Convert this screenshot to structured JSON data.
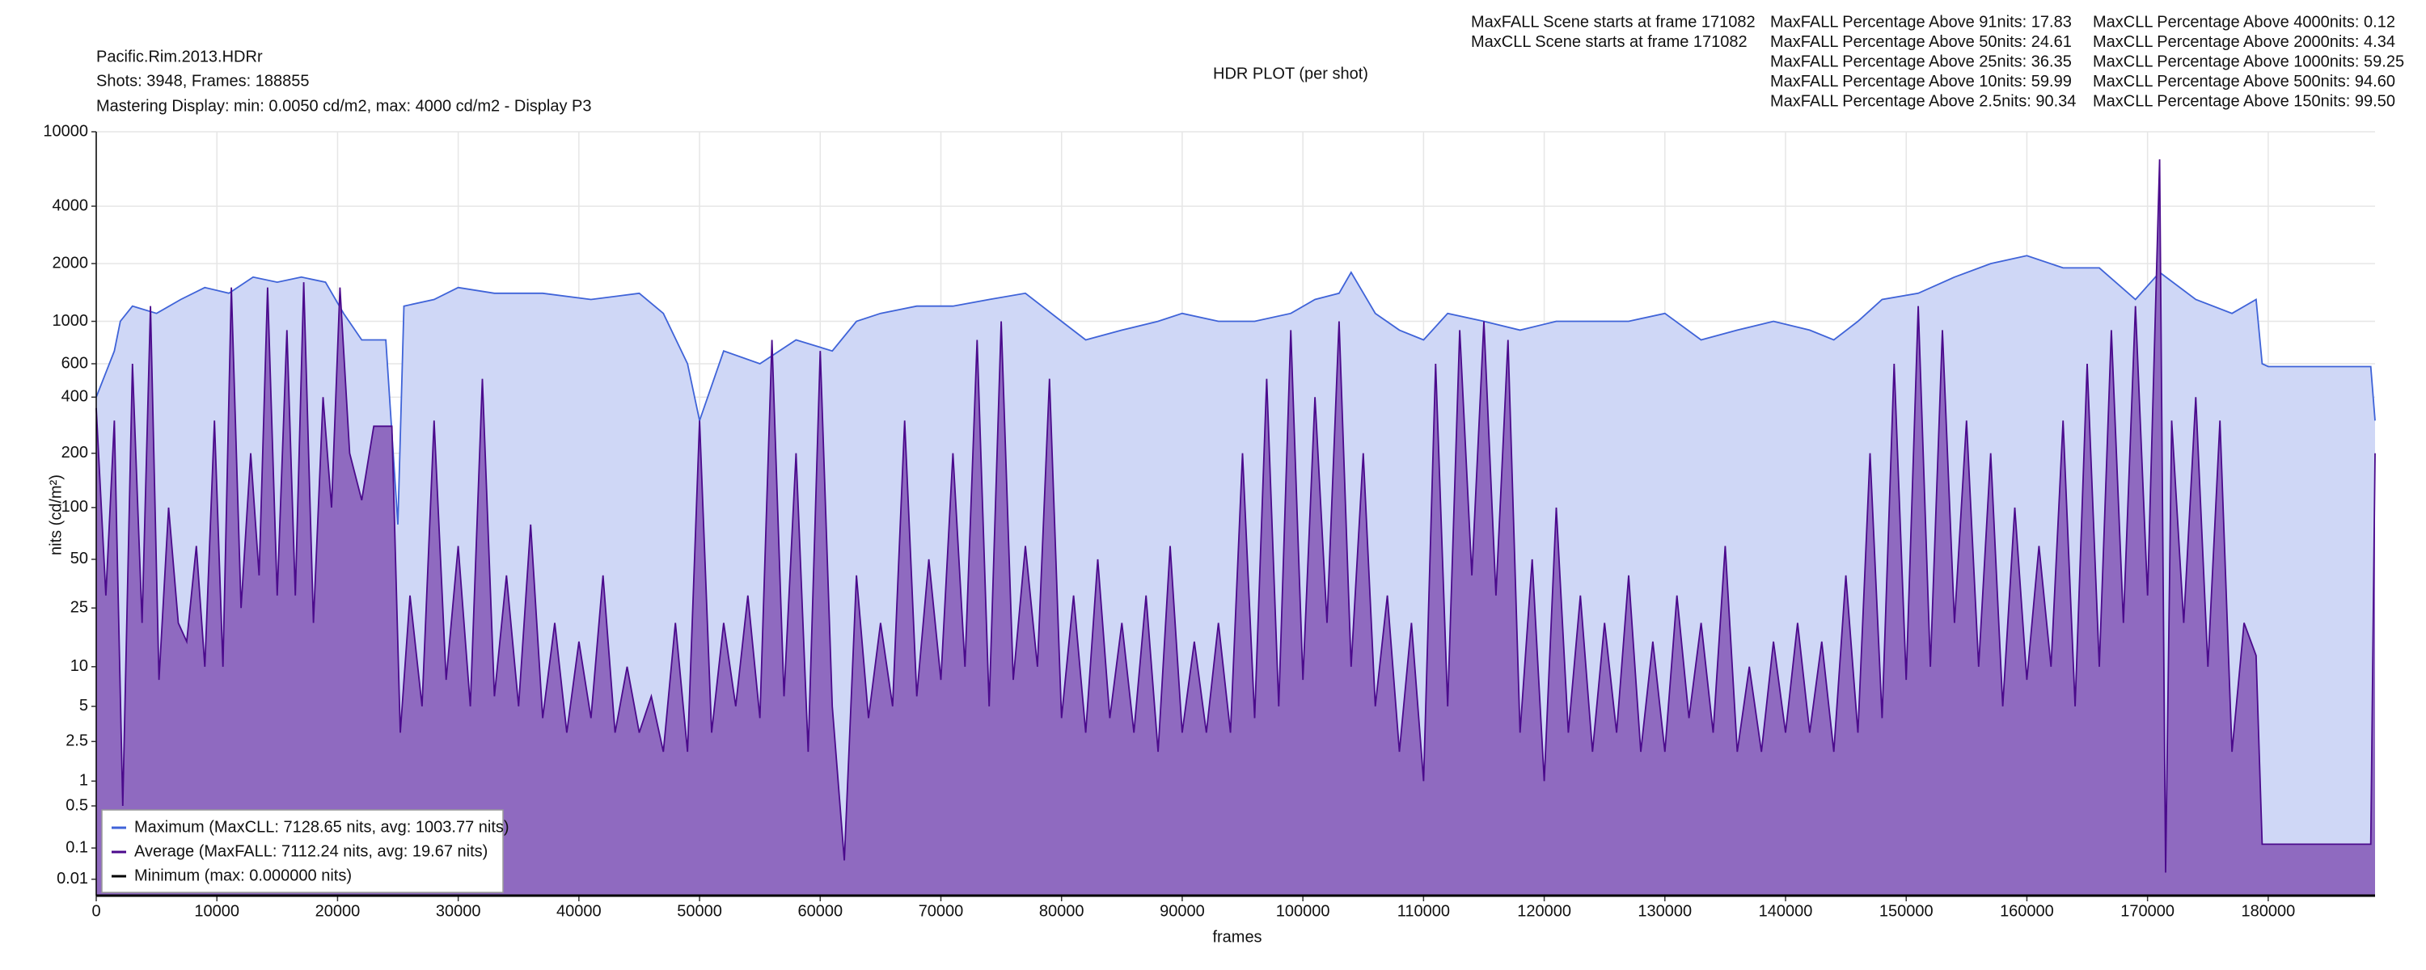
{
  "chart_data": {
    "type": "line",
    "title": "HDR PLOT (per shot)",
    "info": [
      "Pacific.Rim.2013.HDRr",
      "Shots:  3948, Frames: 188855",
      "Mastering Display: min: 0.0050 cd/m2, max: 4000 cd/m2 - Display P3"
    ],
    "stats": [
      [
        "MaxFALL Scene starts at frame 171082",
        "MaxCLL Scene starts at frame 171082"
      ],
      [
        "MaxFALL Percentage Above  91nits: 17.83",
        "MaxFALL Percentage Above  50nits: 24.61",
        "MaxFALL Percentage Above  25nits: 36.35",
        "MaxFALL Percentage Above  10nits: 59.99",
        "MaxFALL Percentage Above 2.5nits: 90.34"
      ],
      [
        "MaxCLL Percentage Above 4000nits: 0.12",
        "MaxCLL Percentage Above 2000nits: 4.34",
        "MaxCLL Percentage Above 1000nits: 59.25",
        "MaxCLL Percentage Above   500nits: 94.60",
        "MaxCLL Percentage Above   150nits: 99.50"
      ]
    ],
    "x_label": "frames",
    "y_label": "nits (cd/m²)",
    "y_scale": "pq",
    "grid": true,
    "legend": "lower left",
    "xlim": [
      0,
      188855
    ],
    "xticks": [
      0,
      10000,
      20000,
      30000,
      40000,
      50000,
      60000,
      70000,
      80000,
      90000,
      100000,
      110000,
      120000,
      130000,
      140000,
      150000,
      160000,
      170000,
      180000
    ],
    "ylim": [
      0,
      10000
    ],
    "yticks": [
      0.01,
      0.1,
      0.5,
      1,
      2.5,
      5,
      10,
      25,
      50,
      100,
      200,
      400,
      600,
      1000,
      2000,
      4000,
      10000
    ],
    "series": [
      {
        "name": "Maximum (MaxCLL: 7128.65 nits, avg: 1003.77 nits)",
        "color": "#3f63d8",
        "fill": "#cfd7f6",
        "x": [
          0,
          1500,
          2000,
          3000,
          5000,
          7000,
          9000,
          11000,
          13000,
          15000,
          17000,
          19000,
          20500,
          22000,
          24000,
          25000,
          25500,
          28000,
          30000,
          33000,
          37000,
          41000,
          45000,
          47000,
          49000,
          50000,
          52000,
          55000,
          58000,
          61000,
          63000,
          65000,
          68000,
          71000,
          74000,
          77000,
          80000,
          82000,
          85000,
          88000,
          90000,
          93000,
          96000,
          99000,
          101000,
          103000,
          104000,
          106000,
          108000,
          110000,
          112000,
          115000,
          118000,
          121000,
          124000,
          127000,
          130000,
          133000,
          136000,
          139000,
          142000,
          144000,
          146000,
          148000,
          151000,
          154000,
          157000,
          160000,
          163000,
          166000,
          169000,
          171000,
          174000,
          177000,
          179000,
          179500,
          180000,
          188500,
          188855
        ],
        "values": [
          400,
          700,
          1000,
          1200,
          1100,
          1300,
          1500,
          1400,
          1700,
          1600,
          1700,
          1600,
          1100,
          800,
          800,
          80,
          1200,
          1300,
          1500,
          1400,
          1400,
          1300,
          1400,
          1100,
          600,
          300,
          700,
          600,
          800,
          700,
          1000,
          1100,
          1200,
          1200,
          1300,
          1400,
          1000,
          800,
          900,
          1000,
          1100,
          1000,
          1000,
          1100,
          1300,
          1400,
          1800,
          1100,
          900,
          800,
          1100,
          1000,
          900,
          1000,
          1000,
          1000,
          1100,
          800,
          900,
          1000,
          900,
          800,
          1000,
          1300,
          1400,
          1700,
          2000,
          2200,
          1900,
          1900,
          1300,
          1800,
          1300,
          1100,
          1300,
          600,
          580,
          580,
          300
        ]
      },
      {
        "name": "Average (MaxFALL: 7112.24 nits, avg: 19.67 nits)",
        "color": "#4b0a8c",
        "fill": "#8f6ac0",
        "x": [
          0,
          800,
          1500,
          2200,
          3000,
          3800,
          4500,
          5200,
          6000,
          6800,
          7500,
          8300,
          9000,
          9800,
          10500,
          11200,
          12000,
          12800,
          13500,
          14200,
          15000,
          15800,
          16500,
          17200,
          18000,
          18800,
          19500,
          20200,
          21000,
          22000,
          23000,
          24500,
          25200,
          26000,
          27000,
          28000,
          29000,
          30000,
          31000,
          32000,
          33000,
          34000,
          35000,
          36000,
          37000,
          38000,
          39000,
          40000,
          41000,
          42000,
          43000,
          44000,
          45000,
          46000,
          47000,
          48000,
          49000,
          50000,
          51000,
          52000,
          53000,
          54000,
          55000,
          56000,
          57000,
          58000,
          59000,
          60000,
          61000,
          62000,
          63000,
          64000,
          65000,
          66000,
          67000,
          68000,
          69000,
          70000,
          71000,
          72000,
          73000,
          74000,
          75000,
          76000,
          77000,
          78000,
          79000,
          80000,
          81000,
          82000,
          83000,
          84000,
          85000,
          86000,
          87000,
          88000,
          89000,
          90000,
          91000,
          92000,
          93000,
          94000,
          95000,
          96000,
          97000,
          98000,
          99000,
          100000,
          101000,
          102000,
          103000,
          104000,
          105000,
          106000,
          107000,
          108000,
          109000,
          110000,
          111000,
          112000,
          113000,
          114000,
          115000,
          116000,
          117000,
          118000,
          119000,
          120000,
          121000,
          122000,
          123000,
          124000,
          125000,
          126000,
          127000,
          128000,
          129000,
          130000,
          131000,
          132000,
          133000,
          134000,
          135000,
          136000,
          137000,
          138000,
          139000,
          140000,
          141000,
          142000,
          143000,
          144000,
          145000,
          146000,
          147000,
          148000,
          149000,
          150000,
          151000,
          152000,
          153000,
          154000,
          155000,
          156000,
          157000,
          158000,
          159000,
          160000,
          161000,
          162000,
          163000,
          164000,
          165000,
          166000,
          167000,
          168000,
          169000,
          170000,
          171000,
          171500,
          172000,
          173000,
          174000,
          175000,
          176000,
          177000,
          178000,
          179000,
          179500,
          188500,
          188855
        ],
        "values": [
          350,
          30,
          300,
          0.5,
          600,
          20,
          1200,
          8,
          100,
          20,
          15,
          60,
          10,
          300,
          10,
          1500,
          25,
          200,
          40,
          1500,
          30,
          900,
          30,
          1600,
          20,
          400,
          100,
          1500,
          200,
          110,
          280,
          280,
          3,
          30,
          5,
          300,
          8,
          60,
          5,
          500,
          6,
          40,
          5,
          80,
          4,
          20,
          3,
          15,
          4,
          40,
          3,
          10,
          3,
          6,
          2,
          20,
          2,
          300,
          3,
          20,
          5,
          30,
          4,
          800,
          6,
          200,
          2,
          700,
          5,
          0.05,
          40,
          4,
          20,
          5,
          300,
          6,
          50,
          8,
          200,
          10,
          800,
          5,
          1000,
          8,
          60,
          10,
          500,
          4,
          30,
          3,
          50,
          4,
          20,
          3,
          30,
          2,
          60,
          3,
          15,
          3,
          20,
          3,
          200,
          4,
          500,
          5,
          900,
          8,
          400,
          20,
          1000,
          10,
          200,
          5,
          30,
          2,
          20,
          1,
          600,
          5,
          900,
          40,
          1000,
          30,
          800,
          3,
          50,
          1,
          100,
          3,
          30,
          2,
          20,
          3,
          40,
          2,
          15,
          2,
          30,
          4,
          20,
          3,
          60,
          2,
          10,
          2,
          15,
          3,
          20,
          3,
          15,
          2,
          40,
          3,
          200,
          4,
          600,
          8,
          1200,
          10,
          900,
          20,
          300,
          10,
          200,
          5,
          100,
          8,
          60,
          10,
          300,
          5,
          600,
          10,
          900,
          20,
          1200,
          30,
          7100,
          0.02,
          300,
          20,
          400,
          10,
          300,
          2,
          20,
          12,
          0.12,
          0.12,
          200
        ]
      },
      {
        "name": "Minimum (max: 0.000000 nits)",
        "color": "#000000",
        "x": [
          0,
          188855
        ],
        "values": [
          0,
          0
        ]
      }
    ]
  }
}
